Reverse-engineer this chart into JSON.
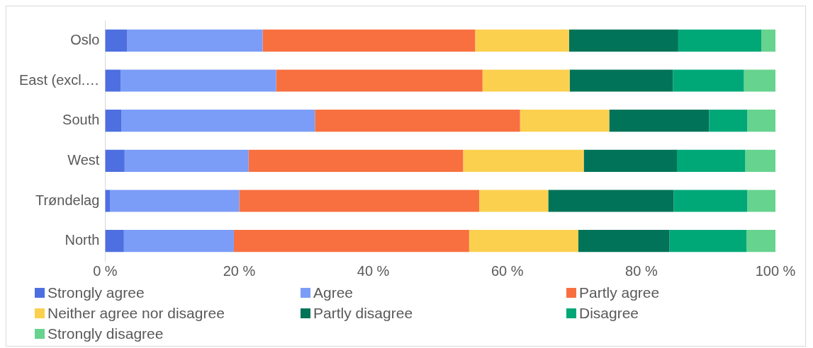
{
  "chart_data": {
    "type": "bar",
    "orientation": "horizontal",
    "stacked": true,
    "categories": [
      "Oslo",
      "East (excl.…",
      "South",
      "West",
      "Trøndelag",
      "North"
    ],
    "series": [
      {
        "name": "Strongly agree",
        "color": "#4e6fe0",
        "values": [
          3.3,
          2.3,
          2.4,
          2.9,
          0.7,
          2.8
        ]
      },
      {
        "name": "Agree",
        "color": "#7b9cf7",
        "values": [
          20.2,
          23.2,
          28.9,
          18.5,
          19.3,
          16.4
        ]
      },
      {
        "name": "Partly agree",
        "color": "#f87040",
        "values": [
          31.7,
          30.8,
          30.6,
          32.0,
          35.8,
          35.1
        ]
      },
      {
        "name": "Neither agree nor disagree",
        "color": "#fcd04f",
        "values": [
          14.0,
          13.0,
          13.3,
          18.0,
          10.3,
          16.3
        ]
      },
      {
        "name": "Partly disagree",
        "color": "#007358",
        "values": [
          16.3,
          15.4,
          14.9,
          13.9,
          18.7,
          13.6
        ]
      },
      {
        "name": "Disagree",
        "color": "#00a878",
        "values": [
          12.4,
          10.6,
          5.7,
          10.2,
          11.0,
          11.5
        ]
      },
      {
        "name": "Strongly disagree",
        "color": "#66d38e",
        "values": [
          2.1,
          4.7,
          4.2,
          4.5,
          4.2,
          4.3
        ]
      }
    ],
    "xlim": [
      0,
      100
    ],
    "xticks": [
      {
        "value": 0,
        "label": "0 %"
      },
      {
        "value": 20,
        "label": "20 %"
      },
      {
        "value": 40,
        "label": "40 %"
      },
      {
        "value": 60,
        "label": "60 %"
      },
      {
        "value": 80,
        "label": "80 %"
      },
      {
        "value": 100,
        "label": "100 %"
      }
    ],
    "grid": false,
    "legend": "bottom"
  }
}
